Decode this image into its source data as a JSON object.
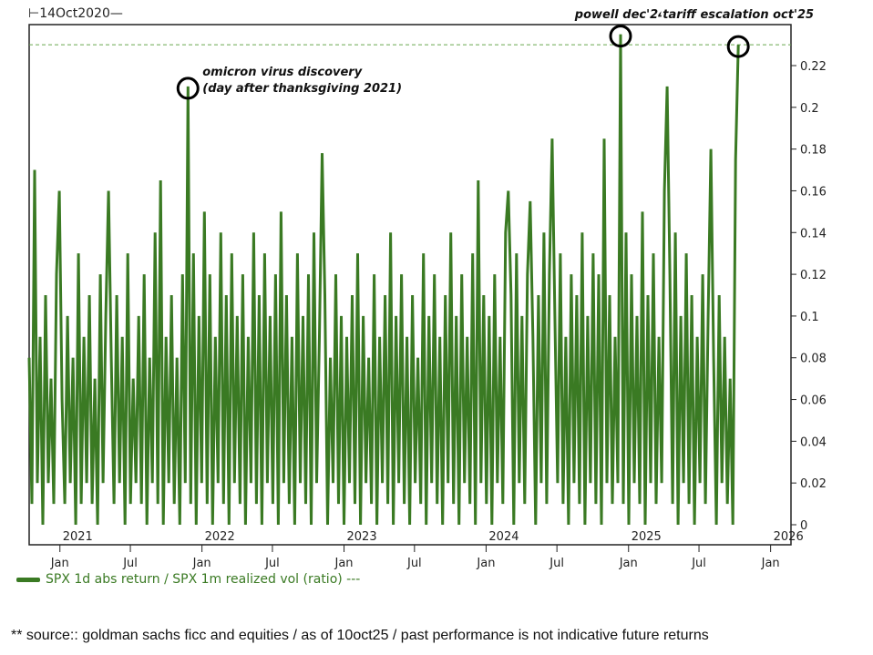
{
  "chart_data": {
    "type": "line",
    "start_label": "14Oct2020",
    "x_start": "2020-10-14",
    "x_end": "2025-10-10",
    "series": [
      {
        "name": "SPX 1d abs return / SPX 1m realized vol (ratio)",
        "color": "#3a7a23",
        "values": [
          0.08,
          0.01,
          0.17,
          0.02,
          0.09,
          0.0,
          0.11,
          0.02,
          0.07,
          0.01,
          0.12,
          0.16,
          0.06,
          0.01,
          0.1,
          0.02,
          0.08,
          0.0,
          0.13,
          0.01,
          0.09,
          0.02,
          0.11,
          0.01,
          0.07,
          0.0,
          0.12,
          0.02,
          0.1,
          0.16,
          0.08,
          0.01,
          0.11,
          0.02,
          0.09,
          0.0,
          0.13,
          0.01,
          0.07,
          0.02,
          0.1,
          0.01,
          0.12,
          0.0,
          0.08,
          0.02,
          0.14,
          0.01,
          0.165,
          0.0,
          0.09,
          0.02,
          0.11,
          0.01,
          0.08,
          0.0,
          0.12,
          0.02,
          0.21,
          0.01,
          0.13,
          0.0,
          0.1,
          0.02,
          0.15,
          0.01,
          0.12,
          0.0,
          0.09,
          0.02,
          0.14,
          0.01,
          0.11,
          0.0,
          0.13,
          0.02,
          0.1,
          0.01,
          0.12,
          0.0,
          0.09,
          0.02,
          0.14,
          0.01,
          0.11,
          0.0,
          0.13,
          0.02,
          0.1,
          0.01,
          0.12,
          0.0,
          0.15,
          0.02,
          0.11,
          0.01,
          0.09,
          0.0,
          0.13,
          0.02,
          0.1,
          0.01,
          0.12,
          0.0,
          0.14,
          0.02,
          0.09,
          0.178,
          0.11,
          0.0,
          0.08,
          0.02,
          0.12,
          0.01,
          0.1,
          0.0,
          0.09,
          0.02,
          0.11,
          0.01,
          0.13,
          0.0,
          0.1,
          0.02,
          0.08,
          0.01,
          0.12,
          0.0,
          0.09,
          0.02,
          0.11,
          0.01,
          0.14,
          0.0,
          0.1,
          0.02,
          0.12,
          0.01,
          0.09,
          0.0,
          0.11,
          0.02,
          0.08,
          0.01,
          0.13,
          0.0,
          0.1,
          0.02,
          0.12,
          0.01,
          0.09,
          0.0,
          0.11,
          0.02,
          0.14,
          0.01,
          0.1,
          0.0,
          0.12,
          0.02,
          0.09,
          0.01,
          0.13,
          0.0,
          0.165,
          0.02,
          0.11,
          0.01,
          0.1,
          0.0,
          0.12,
          0.02,
          0.09,
          0.01,
          0.14,
          0.16,
          0.11,
          0.0,
          0.13,
          0.02,
          0.1,
          0.01,
          0.12,
          0.155,
          0.09,
          0.0,
          0.11,
          0.02,
          0.14,
          0.01,
          0.12,
          0.185,
          0.1,
          0.02,
          0.13,
          0.01,
          0.09,
          0.0,
          0.12,
          0.02,
          0.11,
          0.01,
          0.14,
          0.0,
          0.1,
          0.02,
          0.13,
          0.01,
          0.12,
          0.0,
          0.185,
          0.02,
          0.11,
          0.01,
          0.09,
          0.02,
          0.235,
          0.01,
          0.14,
          0.0,
          0.12,
          0.02,
          0.1,
          0.01,
          0.15,
          0.0,
          0.11,
          0.02,
          0.13,
          0.01,
          0.09,
          0.02,
          0.16,
          0.21,
          0.12,
          0.01,
          0.14,
          0.0,
          0.1,
          0.02,
          0.13,
          0.01,
          0.11,
          0.0,
          0.09,
          0.02,
          0.12,
          0.01,
          0.1,
          0.18,
          0.08,
          0.0,
          0.11,
          0.02,
          0.09,
          0.01,
          0.07,
          0.0,
          0.175,
          0.23
        ]
      }
    ],
    "reference_line": {
      "value": 0.23,
      "style": "dashed",
      "color": "#6aa84f"
    },
    "ylim": [
      0,
      0.24
    ],
    "yticks": [
      "0",
      "0.02",
      "0.04",
      "0.06",
      "0.08",
      "0.1",
      "0.12",
      "0.14",
      "0.16",
      "0.18",
      "0.2",
      "0.22"
    ],
    "ytick_values": [
      0,
      0.02,
      0.04,
      0.06,
      0.08,
      0.1,
      0.12,
      0.14,
      0.16,
      0.18,
      0.2,
      0.22
    ],
    "year_labels": [
      "2021",
      "2022",
      "2023",
      "2024",
      "2025",
      "2026"
    ],
    "month_ticks": [
      {
        "label": "Jan",
        "date": "2021-01-01"
      },
      {
        "label": "Jul",
        "date": "2021-07-01"
      },
      {
        "label": "Jan",
        "date": "2022-01-01"
      },
      {
        "label": "Jul",
        "date": "2022-07-01"
      },
      {
        "label": "Jan",
        "date": "2023-01-01"
      },
      {
        "label": "Jul",
        "date": "2023-07-01"
      },
      {
        "label": "Jan",
        "date": "2024-01-01"
      },
      {
        "label": "Jul",
        "date": "2024-07-01"
      },
      {
        "label": "Jan",
        "date": "2025-01-01"
      },
      {
        "label": "Jul",
        "date": "2025-07-01"
      },
      {
        "label": "Jan",
        "date": "2026-01-01"
      }
    ],
    "annotations": [
      {
        "index": 58,
        "value": 0.21,
        "lines": [
          "omicron virus discovery",
          "(day after thanksgiving 2021)"
        ],
        "placement": "right"
      },
      {
        "index": 216,
        "value": 0.235,
        "lines": [
          "powell dec'24"
        ],
        "placement": "top"
      },
      {
        "index": 259,
        "value": 0.23,
        "lines": [
          "tariff escalation oct'25"
        ],
        "placement": "top"
      }
    ],
    "legend": "bottom-left"
  },
  "legend_label": "SPX 1d abs return / SPX 1m realized vol (ratio) ---",
  "footer": "** source:: goldman sachs ficc and equities / as of 10oct25 / past performance is not indicative future returns"
}
